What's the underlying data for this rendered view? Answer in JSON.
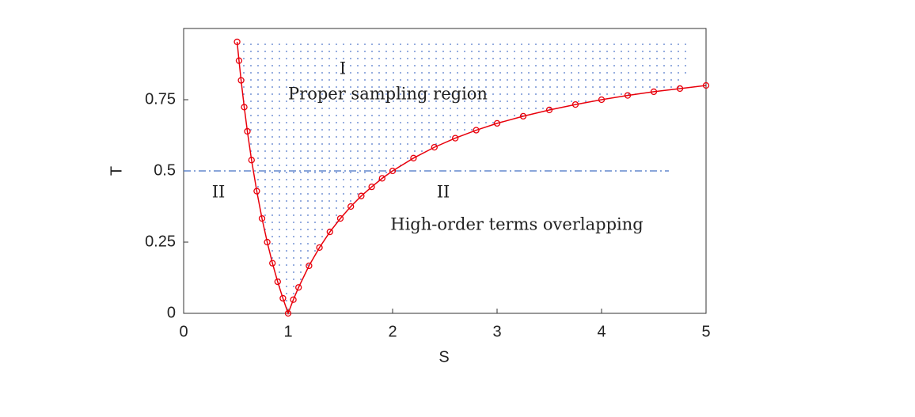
{
  "chart_data": {
    "type": "line",
    "xlabel": "S",
    "ylabel": "T",
    "x": [
      0.512,
      0.53,
      0.55,
      0.58,
      0.61,
      0.65,
      0.7,
      0.75,
      0.8,
      0.85,
      0.9,
      0.95,
      1.0,
      1.05,
      1.1,
      1.2,
      1.3,
      1.4,
      1.5,
      1.6,
      1.7,
      1.8,
      1.9,
      2.0,
      2.2,
      2.4,
      2.6,
      2.8,
      3.0,
      3.25,
      3.5,
      3.75,
      4.0,
      4.25,
      4.5,
      4.75,
      5.0
    ],
    "series": [
      {
        "color": "#e8000b",
        "values": [
          0.953,
          0.887,
          0.818,
          0.724,
          0.639,
          0.538,
          0.429,
          0.333,
          0.25,
          0.176,
          0.111,
          0.053,
          0,
          0.048,
          0.091,
          0.167,
          0.231,
          0.286,
          0.333,
          0.375,
          0.412,
          0.444,
          0.474,
          0.5,
          0.545,
          0.583,
          0.615,
          0.643,
          0.667,
          0.692,
          0.714,
          0.733,
          0.75,
          0.765,
          0.778,
          0.789,
          0.8
        ]
      }
    ],
    "reference_line": {
      "y": 0.5,
      "color": "#4472c4"
    },
    "xlim": [
      0,
      5
    ],
    "ylim": [
      0,
      1
    ],
    "xticks": [
      0,
      1,
      2,
      3,
      4,
      5
    ],
    "yticks": [
      0,
      0.25,
      0.5,
      0.75
    ],
    "annotations": [
      "I",
      "Proper sampling region",
      "II",
      "II",
      "High-order terms overlapping"
    ]
  }
}
